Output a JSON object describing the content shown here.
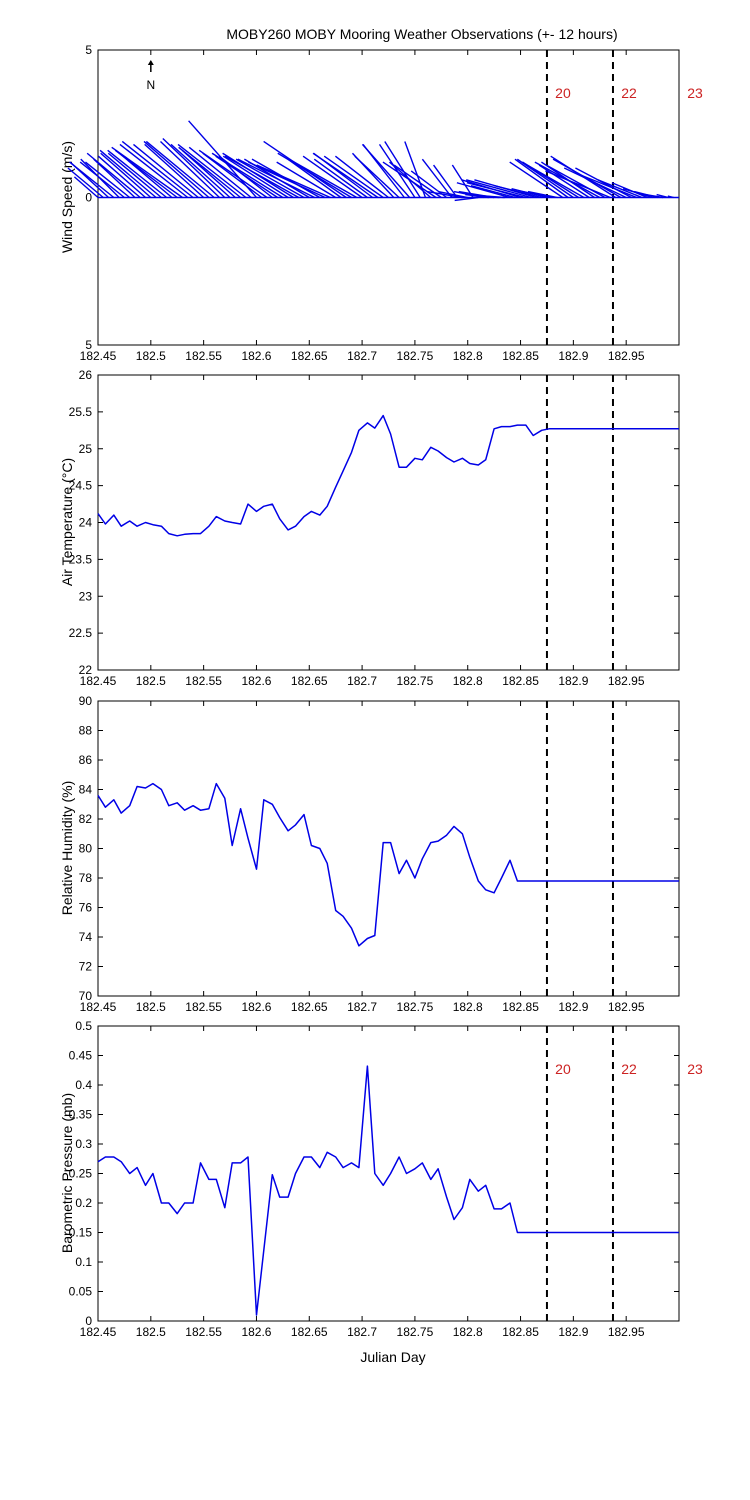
{
  "figure_title": "MOBY260 MOBY Mooring Weather Observations (+- 12 hours)",
  "north_label": "N",
  "xlabel_bottom": "Julian Day",
  "colors": {
    "series": "#0000e6",
    "marker_text": "#cc2222",
    "axes": "#000000"
  },
  "chart_data": [
    {
      "type": "quiver",
      "ylabel": "Wind Speed (m/s)",
      "xlim": [
        182.45,
        183.0
      ],
      "ylim": [
        -5,
        5
      ],
      "x_ticks": [
        "182.45",
        "182.5",
        "182.55",
        "182.6",
        "182.65",
        "182.7",
        "182.75",
        "182.8",
        "182.85",
        "182.9",
        "182.95"
      ],
      "y_ticks": [
        "5",
        "0",
        "5"
      ],
      "vectors": [
        [
          182.45,
          -0.8,
          0.7
        ],
        [
          182.455,
          -1.2,
          1.0
        ],
        [
          182.46,
          -1.3,
          1.2
        ],
        [
          182.465,
          -1.5,
          1.2
        ],
        [
          182.47,
          -1.3,
          1.3
        ],
        [
          182.475,
          -1.5,
          1.2
        ],
        [
          182.48,
          -1.5,
          1.2
        ],
        [
          182.485,
          -1.4,
          1.3
        ],
        [
          182.49,
          -1.8,
          1.5
        ],
        [
          182.495,
          -1.6,
          1.4
        ],
        [
          182.5,
          -1.7,
          1.5
        ],
        [
          182.505,
          -1.9,
          1.6
        ],
        [
          182.51,
          -1.8,
          1.5
        ],
        [
          182.515,
          -2.0,
          1.6
        ],
        [
          182.52,
          -1.9,
          1.6
        ],
        [
          182.525,
          -2.1,
          1.6
        ],
        [
          182.53,
          -2.4,
          1.7
        ],
        [
          182.535,
          -2.3,
          1.8
        ],
        [
          182.54,
          -2.4,
          1.9
        ],
        [
          182.545,
          -2.2,
          1.8
        ],
        [
          182.55,
          -2.0,
          1.8
        ],
        [
          182.555,
          -2.2,
          1.9
        ],
        [
          182.56,
          -2.3,
          1.9
        ],
        [
          182.565,
          -2.0,
          1.9
        ],
        [
          182.57,
          -2.1,
          2.0
        ],
        [
          182.575,
          -2.0,
          1.8
        ],
        [
          182.58,
          -1.8,
          1.6
        ],
        [
          182.585,
          -2.1,
          1.7
        ],
        [
          182.59,
          -2.3,
          1.8
        ],
        [
          182.595,
          -2.1,
          1.7
        ],
        [
          182.6,
          -2.3,
          2.6
        ],
        [
          182.605,
          -2.0,
          1.5
        ],
        [
          182.61,
          -2.3,
          1.6
        ],
        [
          182.615,
          -1.8,
          1.4
        ],
        [
          182.62,
          -2.1,
          1.4
        ],
        [
          182.625,
          -2.4,
          1.5
        ],
        [
          182.63,
          -2.2,
          1.4
        ],
        [
          182.635,
          -2.4,
          1.5
        ],
        [
          182.64,
          -2.5,
          1.4
        ],
        [
          182.645,
          -2.3,
          1.3
        ],
        [
          182.65,
          -2.2,
          1.3
        ],
        [
          182.655,
          -2.6,
          1.3
        ],
        [
          182.66,
          -2.3,
          1.3
        ],
        [
          182.665,
          -2.6,
          1.2
        ],
        [
          182.67,
          -2.5,
          1.1
        ],
        [
          182.675,
          -2.0,
          1.2
        ],
        [
          182.68,
          -1.8,
          1.3
        ],
        [
          182.685,
          -2.8,
          1.9
        ],
        [
          182.69,
          -2.5,
          1.5
        ],
        [
          182.695,
          -2.3,
          1.3
        ],
        [
          182.7,
          -2.0,
          1.4
        ],
        [
          182.705,
          -1.8,
          1.3
        ],
        [
          182.71,
          -2.0,
          1.5
        ],
        [
          182.715,
          -2.2,
          1.5
        ],
        [
          182.72,
          -2.0,
          1.4
        ],
        [
          182.725,
          -1.8,
          1.4
        ],
        [
          182.73,
          -1.4,
          1.5
        ],
        [
          182.735,
          -1.5,
          1.4
        ],
        [
          182.74,
          -1.4,
          1.8
        ],
        [
          182.745,
          -1.6,
          1.8
        ],
        [
          182.75,
          -1.2,
          1.8
        ],
        [
          182.755,
          -1.2,
          1.9
        ],
        [
          182.76,
          -0.7,
          1.9
        ],
        [
          182.765,
          -1.4,
          1.2
        ],
        [
          182.77,
          -1.8,
          1.2
        ],
        [
          182.775,
          -1.6,
          1.1
        ],
        [
          182.78,
          -1.2,
          0.9
        ],
        [
          182.785,
          -1.0,
          1.3
        ],
        [
          182.79,
          -0.8,
          1.1
        ],
        [
          182.795,
          -1.2,
          0.2
        ],
        [
          182.8,
          -1.0,
          0.2
        ],
        [
          182.805,
          -0.7,
          1.1
        ],
        [
          182.81,
          -0.8,
          -0.1
        ],
        [
          182.815,
          -1.0,
          0.2
        ],
        [
          182.82,
          -0.8,
          0.1
        ],
        [
          182.825,
          -1.2,
          0.2
        ],
        [
          182.83,
          -1.1,
          0.1
        ],
        [
          182.835,
          -1.3,
          0.1
        ],
        [
          182.84,
          -1.8,
          0.5
        ],
        [
          182.845,
          -1.5,
          0.4
        ],
        [
          182.85,
          -2.0,
          0.6
        ],
        [
          182.855,
          -2.0,
          0.5
        ],
        [
          182.86,
          -2.2,
          0.6
        ],
        [
          182.865,
          -2.1,
          0.6
        ],
        [
          182.87,
          -1.6,
          0.4
        ],
        [
          182.875,
          -1.2,
          0.3
        ],
        [
          182.88,
          -1.0,
          0.2
        ],
        [
          182.885,
          -1.0,
          0.2
        ],
        [
          182.89,
          -1.8,
          1.2
        ],
        [
          182.895,
          -1.8,
          1.3
        ],
        [
          182.9,
          -1.9,
          1.3
        ],
        [
          182.905,
          -1.9,
          1.2
        ],
        [
          182.91,
          -2.1,
          1.2
        ],
        [
          182.915,
          -1.7,
          1.1
        ],
        [
          182.92,
          -1.8,
          1.2
        ],
        [
          182.925,
          -2.2,
          1.2
        ],
        [
          182.93,
          -2.0,
          1.1
        ],
        [
          182.935,
          -2.2,
          0.9
        ],
        [
          182.94,
          -2.2,
          1.4
        ],
        [
          182.945,
          -2.3,
          1.3
        ],
        [
          182.95,
          -2.1,
          1.0
        ],
        [
          182.955,
          -1.9,
          1.0
        ],
        [
          182.96,
          -2.0,
          0.8
        ],
        [
          182.965,
          -1.5,
          0.6
        ],
        [
          182.97,
          -1.2,
          0.5
        ],
        [
          182.975,
          -1.0,
          0.3
        ],
        [
          182.98,
          -0.8,
          0.2
        ],
        [
          182.985,
          -0.6,
          0.1
        ],
        [
          182.99,
          -0.4,
          0.1
        ],
        [
          182.995,
          -0.2,
          0.05
        ]
      ],
      "markers": [
        {
          "x": 182.875,
          "label": "20"
        },
        {
          "x": 182.9375,
          "label": "22"
        },
        {
          "x": 183.0,
          "label": "23"
        }
      ]
    },
    {
      "type": "line",
      "ylabel": "Air Temperature (°C)",
      "xlim": [
        182.45,
        183.0
      ],
      "ylim": [
        22,
        26
      ],
      "x_ticks": [
        "182.45",
        "182.5",
        "182.55",
        "182.6",
        "182.65",
        "182.7",
        "182.75",
        "182.8",
        "182.85",
        "182.9",
        "182.95"
      ],
      "y_ticks": [
        "22",
        "22.5",
        "23",
        "23.5",
        "24",
        "24.5",
        "25",
        "25.5",
        "26"
      ],
      "x": [
        182.45,
        182.457,
        182.465,
        182.472,
        182.48,
        182.487,
        182.495,
        182.502,
        182.51,
        182.517,
        182.525,
        182.532,
        182.54,
        182.547,
        182.555,
        182.562,
        182.57,
        182.577,
        182.585,
        182.592,
        182.6,
        182.607,
        182.615,
        182.622,
        182.63,
        182.637,
        182.645,
        182.652,
        182.66,
        182.667,
        182.675,
        182.682,
        182.69,
        182.697,
        182.705,
        182.712,
        182.72,
        182.727,
        182.735,
        182.742,
        182.75,
        182.757,
        182.765,
        182.772,
        182.78,
        182.787,
        182.795,
        182.802,
        182.81,
        182.817,
        182.825,
        182.832,
        182.84,
        182.847,
        182.855,
        182.862,
        182.87,
        182.877,
        182.885,
        182.892,
        182.9,
        182.907,
        182.915,
        182.922,
        182.93,
        182.937,
        182.945,
        182.952,
        182.96,
        182.967,
        182.975,
        182.982,
        182.99,
        183.0
      ],
      "y": [
        24.12,
        23.98,
        24.1,
        23.95,
        24.02,
        23.95,
        24.0,
        23.97,
        23.95,
        23.85,
        23.82,
        23.84,
        23.85,
        23.85,
        23.95,
        24.08,
        24.02,
        24.0,
        23.98,
        24.25,
        24.15,
        24.22,
        24.25,
        24.05,
        23.9,
        23.95,
        24.08,
        24.15,
        24.1,
        24.22,
        24.48,
        24.7,
        24.95,
        25.25,
        25.35,
        25.28,
        25.45,
        25.2,
        24.75,
        24.75,
        24.87,
        24.85,
        25.02,
        24.97,
        24.88,
        24.82,
        24.87,
        24.8,
        24.78,
        24.85,
        25.27,
        25.3,
        25.3,
        25.32,
        25.32,
        25.18,
        25.25,
        25.27,
        25.27,
        25.27,
        25.27,
        25.27,
        25.27,
        25.27,
        25.27,
        25.27,
        25.27,
        25.27,
        25.27,
        25.27,
        25.27,
        25.27,
        25.27,
        25.27
      ]
    },
    {
      "type": "line",
      "ylabel": "Relative Humidity (%)",
      "xlim": [
        182.45,
        183.0
      ],
      "ylim": [
        70,
        90
      ],
      "x_ticks": [
        "182.45",
        "182.5",
        "182.55",
        "182.6",
        "182.65",
        "182.7",
        "182.75",
        "182.8",
        "182.85",
        "182.9",
        "182.95"
      ],
      "y_ticks": [
        "70",
        "72",
        "74",
        "76",
        "78",
        "80",
        "82",
        "84",
        "86",
        "88",
        "90"
      ],
      "x": [
        182.45,
        182.457,
        182.465,
        182.472,
        182.48,
        182.487,
        182.495,
        182.502,
        182.51,
        182.517,
        182.525,
        182.532,
        182.54,
        182.547,
        182.555,
        182.562,
        182.57,
        182.577,
        182.585,
        182.592,
        182.6,
        182.607,
        182.615,
        182.622,
        182.63,
        182.637,
        182.645,
        182.652,
        182.66,
        182.667,
        182.675,
        182.682,
        182.69,
        182.697,
        182.705,
        182.712,
        182.72,
        182.727,
        182.735,
        182.742,
        182.75,
        182.757,
        182.765,
        182.772,
        182.78,
        182.787,
        182.795,
        182.802,
        182.81,
        182.817,
        182.825,
        182.832,
        182.84,
        182.847,
        182.855,
        182.862,
        182.87,
        182.877,
        182.885,
        182.892,
        182.9,
        182.907,
        182.915,
        182.922,
        182.93,
        182.937,
        182.945,
        182.952,
        182.96,
        182.967,
        182.975,
        182.982,
        182.99,
        183.0
      ],
      "y": [
        83.6,
        82.8,
        83.3,
        82.4,
        82.9,
        84.2,
        84.1,
        84.4,
        84.0,
        82.9,
        83.1,
        82.6,
        82.9,
        82.6,
        82.7,
        84.4,
        83.4,
        80.2,
        82.7,
        80.7,
        78.6,
        83.3,
        83.0,
        82.1,
        81.2,
        81.6,
        82.3,
        80.2,
        80.0,
        79.0,
        75.8,
        75.4,
        74.6,
        73.4,
        73.9,
        74.1,
        80.4,
        80.4,
        78.3,
        79.2,
        78.0,
        79.3,
        80.4,
        80.5,
        80.9,
        81.5,
        81.0,
        79.4,
        77.8,
        77.2,
        77.0,
        78.0,
        79.2,
        77.8,
        77.8,
        77.8,
        77.8,
        77.8,
        77.8,
        77.8,
        77.8,
        77.8,
        77.8,
        77.8,
        77.8,
        77.8,
        77.8,
        77.8,
        77.8,
        77.8,
        77.8,
        77.8,
        77.8,
        77.8
      ]
    },
    {
      "type": "line",
      "ylabel": "Barometric Pressure (mb)",
      "xlabel": "Julian Day",
      "xlim": [
        182.45,
        183.0
      ],
      "ylim": [
        0,
        0.5
      ],
      "x_ticks": [
        "182.45",
        "182.5",
        "182.55",
        "182.6",
        "182.65",
        "182.7",
        "182.75",
        "182.8",
        "182.85",
        "182.9",
        "182.95"
      ],
      "y_ticks": [
        "0",
        "0.05",
        "0.1",
        "0.15",
        "0.2",
        "0.25",
        "0.3",
        "0.35",
        "0.4",
        "0.45",
        "0.5"
      ],
      "x": [
        182.45,
        182.457,
        182.465,
        182.472,
        182.48,
        182.487,
        182.495,
        182.502,
        182.51,
        182.517,
        182.525,
        182.532,
        182.54,
        182.547,
        182.555,
        182.562,
        182.57,
        182.577,
        182.585,
        182.592,
        182.6,
        182.607,
        182.615,
        182.622,
        182.63,
        182.637,
        182.645,
        182.652,
        182.66,
        182.667,
        182.675,
        182.682,
        182.69,
        182.697,
        182.705,
        182.712,
        182.72,
        182.727,
        182.735,
        182.742,
        182.75,
        182.757,
        182.765,
        182.772,
        182.78,
        182.787,
        182.795,
        182.802,
        182.81,
        182.817,
        182.825,
        182.832,
        182.84,
        182.847,
        182.855,
        182.862,
        182.87,
        182.877,
        182.885,
        182.892,
        182.9,
        182.907,
        182.915,
        182.922,
        182.93,
        182.937,
        182.945,
        182.952,
        182.96,
        182.967,
        182.975,
        182.982,
        182.99,
        183.0
      ],
      "y": [
        0.27,
        0.278,
        0.278,
        0.27,
        0.25,
        0.26,
        0.23,
        0.25,
        0.2,
        0.2,
        0.182,
        0.2,
        0.2,
        0.268,
        0.24,
        0.24,
        0.192,
        0.268,
        0.268,
        0.278,
        0.01,
        0.12,
        0.248,
        0.21,
        0.21,
        0.25,
        0.278,
        0.278,
        0.26,
        0.286,
        0.278,
        0.26,
        0.268,
        0.26,
        0.432,
        0.25,
        0.23,
        0.25,
        0.278,
        0.25,
        0.258,
        0.268,
        0.24,
        0.258,
        0.21,
        0.172,
        0.192,
        0.24,
        0.22,
        0.23,
        0.19,
        0.19,
        0.2,
        0.15,
        0.15,
        0.15,
        0.15,
        0.15,
        0.15,
        0.15,
        0.15,
        0.15,
        0.15,
        0.15,
        0.15,
        0.15,
        0.15,
        0.15,
        0.15,
        0.15,
        0.15,
        0.15,
        0.15,
        0.15
      ],
      "markers": [
        {
          "x": 182.875,
          "label": "20"
        },
        {
          "x": 182.9375,
          "label": "22"
        },
        {
          "x": 183.0,
          "label": "23"
        }
      ]
    }
  ]
}
